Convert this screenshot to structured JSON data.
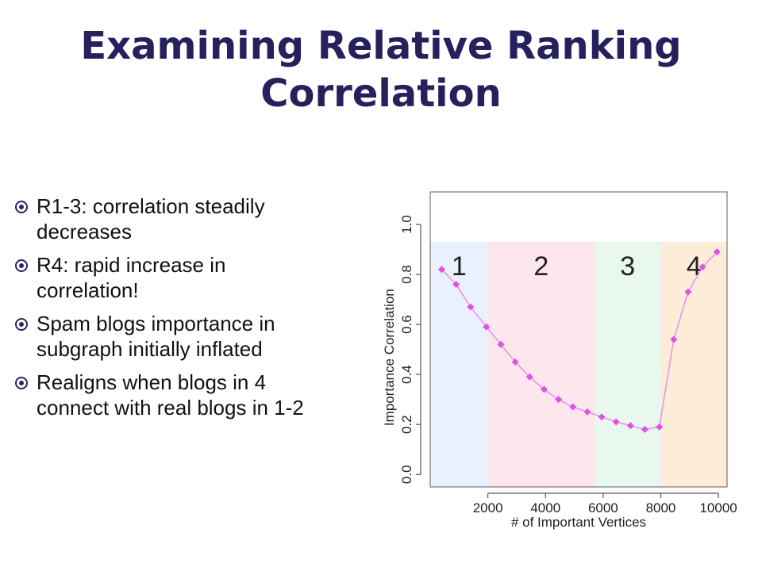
{
  "slide": {
    "title_line1": "Examining Relative Ranking",
    "title_line2": "Correlation"
  },
  "bullets": [
    {
      "line1": "R1-3: correlation steadily",
      "line2": "decreases"
    },
    {
      "line1": "R4: rapid increase in",
      "line2": "correlation!"
    },
    {
      "line1": "Spam blogs importance in",
      "line2": "subgraph initially inflated"
    },
    {
      "line1": "Realigns when blogs in 4",
      "line2": "connect with real blogs in 1-2"
    }
  ],
  "colors": {
    "title": "#26215c",
    "bullet_icon": "#2a2560",
    "series": "#e050e8",
    "line": "#e88ee8",
    "region1": "#e8f1fd",
    "region2": "#fde6ec",
    "region3": "#e8f8ee",
    "region4": "#fdedd8"
  },
  "chart_data": {
    "type": "scatter",
    "xlabel": "# of Important Vertices",
    "ylabel": "Importance Correlation",
    "xlim": [
      0,
      10300
    ],
    "ylim": [
      -0.05,
      1.13
    ],
    "xticks": [
      2000,
      4000,
      6000,
      8000,
      10000
    ],
    "yticks": [
      0.0,
      0.2,
      0.4,
      0.6,
      0.8,
      1.0
    ],
    "xtick_labels": [
      "2000",
      "4000",
      "6000",
      "8000",
      "10000"
    ],
    "ytick_labels": [
      "0.0",
      "0.2",
      "0.4",
      "0.6",
      "0.8",
      "1.0"
    ],
    "regions": [
      {
        "label": "1",
        "x_start": 0,
        "x_end": 2000,
        "color": "#e8f1fd"
      },
      {
        "label": "2",
        "x_start": 2000,
        "x_end": 5700,
        "color": "#fde6ec"
      },
      {
        "label": "3",
        "x_start": 5700,
        "x_end": 8000,
        "color": "#e8f8ee"
      },
      {
        "label": "4",
        "x_start": 8000,
        "x_end": 10300,
        "color": "#fdedd8"
      }
    ],
    "region_top": 0.93,
    "series": [
      {
        "x": [
          400,
          900,
          1400,
          1950,
          2450,
          2950,
          3450,
          3950,
          4450,
          4950,
          5450,
          5950,
          6450,
          6950,
          7450,
          7950,
          8450,
          8950,
          9450,
          9950
        ],
        "y": [
          0.82,
          0.76,
          0.67,
          0.59,
          0.52,
          0.45,
          0.39,
          0.34,
          0.3,
          0.27,
          0.25,
          0.23,
          0.21,
          0.195,
          0.18,
          0.19,
          0.54,
          0.73,
          0.83,
          0.89
        ]
      }
    ],
    "grid": false
  }
}
